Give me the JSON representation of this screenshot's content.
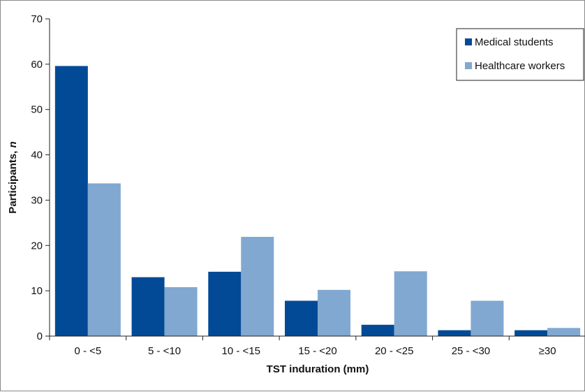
{
  "chart_data": {
    "type": "bar",
    "title": "",
    "xlabel": "TST induration (mm)",
    "ylabel_prefix": "Participants, ",
    "ylabel_var": "n",
    "ylim": [
      0,
      70
    ],
    "yticks": [
      0,
      10,
      20,
      30,
      40,
      50,
      60,
      70
    ],
    "categories": [
      "0 - <5",
      "5 - <10",
      "10 - <15",
      "15 - <20",
      "20 - <25",
      "25 - <30",
      "≥30"
    ],
    "series": [
      {
        "name": "Medical students",
        "color": "#034a96",
        "values": [
          59.6,
          13,
          14.2,
          7.8,
          2.5,
          1.3,
          1.3
        ]
      },
      {
        "name": "Healthcare workers",
        "color": "#81a8d0",
        "values": [
          33.7,
          10.8,
          21.9,
          10.2,
          14.3,
          7.8,
          1.8
        ]
      }
    ],
    "legend": {
      "position": "top-right"
    },
    "grid": false
  }
}
